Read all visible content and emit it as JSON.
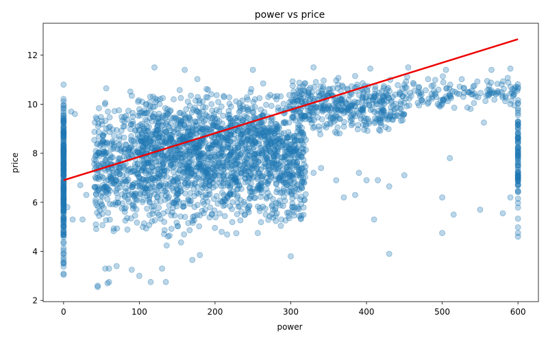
{
  "chart_data": {
    "type": "scatter",
    "title": "power vs price",
    "xlabel": "power",
    "ylabel": "price",
    "xlim": [
      -27,
      627
    ],
    "ylim": [
      1.95,
      13.3
    ],
    "xticks": [
      0,
      100,
      200,
      300,
      400,
      500,
      600
    ],
    "yticks": [
      2,
      4,
      6,
      8,
      10,
      12
    ],
    "grid": false,
    "colors": {
      "points": "#1f77b4",
      "trend": "#ee0000"
    },
    "trend_line": {
      "x": [
        0,
        600
      ],
      "y": [
        6.9,
        12.65
      ]
    },
    "clusters": [
      {
        "x": [
          0,
          0
        ],
        "y": [
          2.5,
          11.5
        ],
        "n": 260
      },
      {
        "x": [
          40,
          320
        ],
        "y": [
          4.0,
          11.0
        ],
        "n": 1600
      },
      {
        "x": [
          100,
          300
        ],
        "y": [
          6.0,
          11.3
        ],
        "n": 600
      },
      {
        "x": [
          300,
          450
        ],
        "y": [
          8.5,
          11.4
        ],
        "n": 420
      },
      {
        "x": [
          450,
          600
        ],
        "y": [
          9.5,
          11.4
        ],
        "n": 140
      },
      {
        "x": [
          600,
          600
        ],
        "y": [
          4.6,
          11.4
        ],
        "n": 90
      }
    ],
    "points": [
      [
        10,
        9.7
      ],
      [
        15,
        9.6
      ],
      [
        22,
        6.7
      ],
      [
        30,
        6.3
      ],
      [
        25,
        5.3
      ],
      [
        5,
        5.8
      ],
      [
        12,
        5.3
      ],
      [
        45,
        2.6
      ],
      [
        45,
        2.55
      ],
      [
        58,
        2.7
      ],
      [
        60,
        2.75
      ],
      [
        55,
        3.3
      ],
      [
        60,
        3.3
      ],
      [
        70,
        3.4
      ],
      [
        90,
        3.25
      ],
      [
        100,
        3.0
      ],
      [
        115,
        2.75
      ],
      [
        135,
        2.75
      ],
      [
        130,
        3.3
      ],
      [
        170,
        3.65
      ],
      [
        180,
        3.85
      ],
      [
        300,
        3.8
      ],
      [
        430,
        3.9
      ],
      [
        330,
        7.2
      ],
      [
        340,
        7.4
      ],
      [
        360,
        6.9
      ],
      [
        370,
        6.2
      ],
      [
        385,
        6.3
      ],
      [
        390,
        7.2
      ],
      [
        400,
        6.9
      ],
      [
        410,
        5.3
      ],
      [
        430,
        6.65
      ],
      [
        415,
        6.9
      ],
      [
        450,
        7.1
      ],
      [
        500,
        6.2
      ],
      [
        500,
        4.75
      ],
      [
        550,
        5.7
      ],
      [
        510,
        7.8
      ],
      [
        515,
        5.5
      ],
      [
        580,
        5.55
      ],
      [
        590,
        6.2
      ],
      [
        555,
        9.25
      ],
      [
        600,
        4.6
      ],
      [
        600,
        4.75
      ],
      [
        160,
        11.4
      ],
      [
        120,
        11.5
      ],
      [
        250,
        11.4
      ],
      [
        330,
        11.5
      ],
      [
        405,
        11.45
      ],
      [
        455,
        11.5
      ],
      [
        505,
        11.4
      ],
      [
        565,
        11.4
      ],
      [
        590,
        11.45
      ]
    ]
  }
}
